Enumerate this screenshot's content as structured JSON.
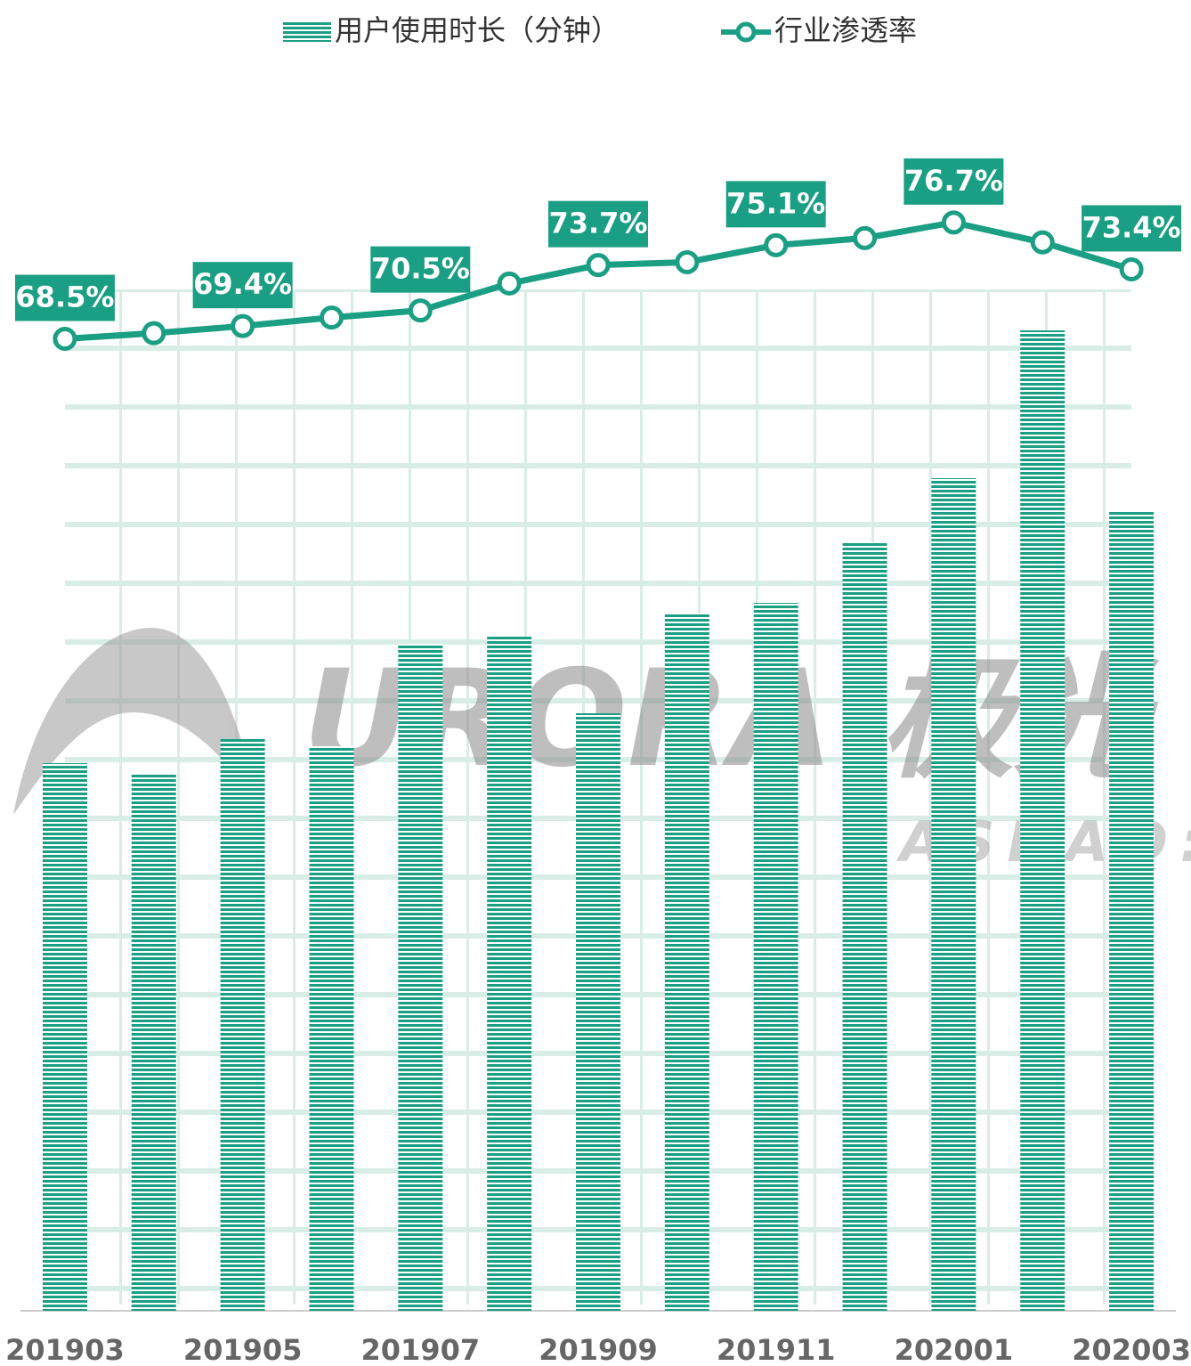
{
  "chart_data": {
    "type": "bar",
    "categories": [
      "201903",
      null,
      "201905",
      null,
      "201907",
      null,
      "201909",
      null,
      "201911",
      null,
      "202001",
      null,
      "202003"
    ],
    "series": [
      {
        "name": "用户使用时长（分钟）",
        "type": "bar",
        "color": "#1a9e84",
        "values": [
          61.5,
          60.3,
          64.2,
          63.4,
          74.9,
          75.7,
          67.1,
          78.3,
          79.5,
          86.3,
          93.5,
          110.1,
          89.7
        ]
      },
      {
        "name": "行业渗透率",
        "type": "line",
        "axis": "y2",
        "color": "#1a9e84",
        "values": [
          68.5,
          68.9,
          69.4,
          70.0,
          70.5,
          72.4,
          73.7,
          73.9,
          75.1,
          75.6,
          76.7,
          75.3,
          73.4
        ],
        "value_labels": [
          "68.5%",
          null,
          "69.4%",
          null,
          "70.5%",
          null,
          "73.7%",
          null,
          "75.1%",
          null,
          "76.7%",
          null,
          "73.4%"
        ]
      }
    ],
    "ylim": [
      0,
      145
    ],
    "y2lim": [
      0,
      91
    ],
    "legend": "top",
    "watermark": {
      "text": "URORA 极光",
      "sub": "NASDAQ:JG"
    }
  }
}
